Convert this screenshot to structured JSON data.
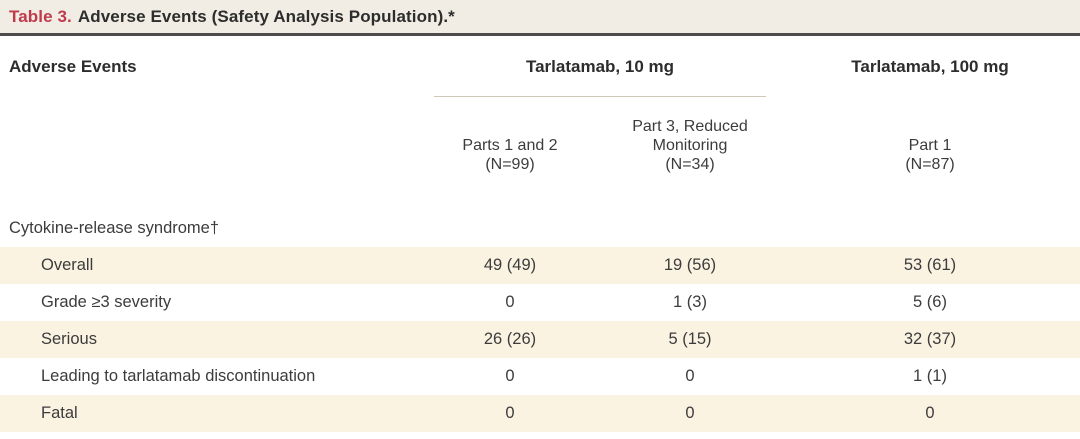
{
  "title": {
    "label": "Table 3.",
    "text": "Adverse Events (Safety Analysis Population).*"
  },
  "header": {
    "row_label": "Adverse Events",
    "group_10mg": "Tarlatamab, 10 mg",
    "group_100mg": "Tarlatamab, 100 mg",
    "subcolumns": [
      {
        "lines": [
          "Parts 1 and 2",
          "(N=99)"
        ]
      },
      {
        "lines": [
          "Part 3, Reduced",
          "Monitoring",
          "(N=34)"
        ]
      },
      {
        "lines": [
          "Part 1",
          "(N=87)"
        ]
      }
    ]
  },
  "section": {
    "label": "Cytokine-release syndrome†"
  },
  "rows": [
    {
      "label": "Overall",
      "values": [
        "49 (49)",
        "19 (56)",
        "53 (61)"
      ]
    },
    {
      "label": "Grade ≥3 severity",
      "values": [
        "0",
        "1 (3)",
        "5 (6)"
      ]
    },
    {
      "label": "Serious",
      "values": [
        "26 (26)",
        "5 (15)",
        "32 (37)"
      ]
    },
    {
      "label": "Leading to tarlatamab discontinuation",
      "values": [
        "0",
        "0",
        "1 (1)"
      ]
    },
    {
      "label": "Fatal",
      "values": [
        "0",
        "0",
        "0"
      ]
    }
  ],
  "colors": {
    "title_number_red": "#bf3b4c",
    "title_bar_background": "#f1ede4",
    "shaded_row_background": "#faf3e2",
    "header_rule_dark": "#4d4d4d",
    "spanner_hairline": "#cfc8b8",
    "text_dark": "#2d2d2d",
    "text_body": "#3c3c3c"
  }
}
